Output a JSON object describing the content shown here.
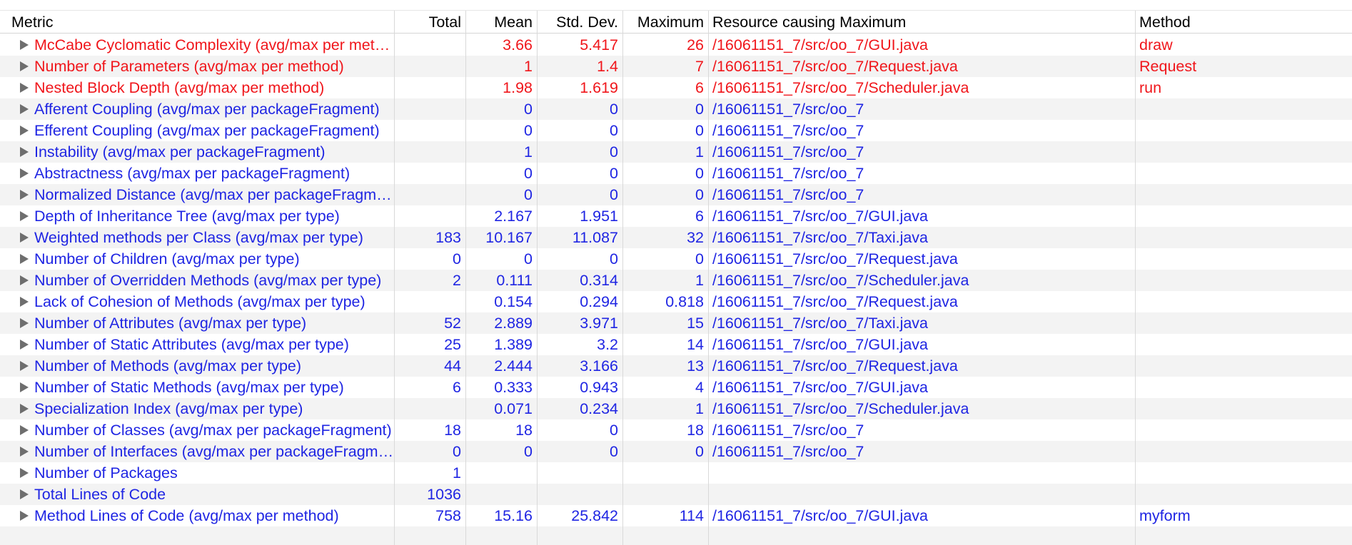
{
  "columns": {
    "metric": "Metric",
    "total": "Total",
    "mean": "Mean",
    "std_dev": "Std. Dev.",
    "maximum": "Maximum",
    "resource": "Resource causing Maximum",
    "method": "Method"
  },
  "colors": {
    "warning_text": "#f0161b",
    "normal_text": "#1f25e3",
    "stripe": "#f3f3f3",
    "expander": "#6e6e6e"
  },
  "rows": [
    {
      "metric": "McCabe Cyclomatic Complexity (avg/max per method)",
      "total": "",
      "mean": "3.66",
      "std_dev": "5.417",
      "maximum": "26",
      "resource": "/16061151_7/src/oo_7/GUI.java",
      "method": "draw",
      "status": "warning"
    },
    {
      "metric": "Number of Parameters (avg/max per method)",
      "total": "",
      "mean": "1",
      "std_dev": "1.4",
      "maximum": "7",
      "resource": "/16061151_7/src/oo_7/Request.java",
      "method": "Request",
      "status": "warning"
    },
    {
      "metric": "Nested Block Depth (avg/max per method)",
      "total": "",
      "mean": "1.98",
      "std_dev": "1.619",
      "maximum": "6",
      "resource": "/16061151_7/src/oo_7/Scheduler.java",
      "method": "run",
      "status": "warning"
    },
    {
      "metric": "Afferent Coupling (avg/max per packageFragment)",
      "total": "",
      "mean": "0",
      "std_dev": "0",
      "maximum": "0",
      "resource": "/16061151_7/src/oo_7",
      "method": "",
      "status": "normal"
    },
    {
      "metric": "Efferent Coupling (avg/max per packageFragment)",
      "total": "",
      "mean": "0",
      "std_dev": "0",
      "maximum": "0",
      "resource": "/16061151_7/src/oo_7",
      "method": "",
      "status": "normal"
    },
    {
      "metric": "Instability (avg/max per packageFragment)",
      "total": "",
      "mean": "1",
      "std_dev": "0",
      "maximum": "1",
      "resource": "/16061151_7/src/oo_7",
      "method": "",
      "status": "normal"
    },
    {
      "metric": "Abstractness (avg/max per packageFragment)",
      "total": "",
      "mean": "0",
      "std_dev": "0",
      "maximum": "0",
      "resource": "/16061151_7/src/oo_7",
      "method": "",
      "status": "normal"
    },
    {
      "metric": "Normalized Distance (avg/max per packageFragment)",
      "total": "",
      "mean": "0",
      "std_dev": "0",
      "maximum": "0",
      "resource": "/16061151_7/src/oo_7",
      "method": "",
      "status": "normal"
    },
    {
      "metric": "Depth of Inheritance Tree (avg/max per type)",
      "total": "",
      "mean": "2.167",
      "std_dev": "1.951",
      "maximum": "6",
      "resource": "/16061151_7/src/oo_7/GUI.java",
      "method": "",
      "status": "normal"
    },
    {
      "metric": "Weighted methods per Class (avg/max per type)",
      "total": "183",
      "mean": "10.167",
      "std_dev": "11.087",
      "maximum": "32",
      "resource": "/16061151_7/src/oo_7/Taxi.java",
      "method": "",
      "status": "normal"
    },
    {
      "metric": "Number of Children (avg/max per type)",
      "total": "0",
      "mean": "0",
      "std_dev": "0",
      "maximum": "0",
      "resource": "/16061151_7/src/oo_7/Request.java",
      "method": "",
      "status": "normal"
    },
    {
      "metric": "Number of Overridden Methods (avg/max per type)",
      "total": "2",
      "mean": "0.111",
      "std_dev": "0.314",
      "maximum": "1",
      "resource": "/16061151_7/src/oo_7/Scheduler.java",
      "method": "",
      "status": "normal"
    },
    {
      "metric": "Lack of Cohesion of Methods (avg/max per type)",
      "total": "",
      "mean": "0.154",
      "std_dev": "0.294",
      "maximum": "0.818",
      "resource": "/16061151_7/src/oo_7/Request.java",
      "method": "",
      "status": "normal"
    },
    {
      "metric": "Number of Attributes (avg/max per type)",
      "total": "52",
      "mean": "2.889",
      "std_dev": "3.971",
      "maximum": "15",
      "resource": "/16061151_7/src/oo_7/Taxi.java",
      "method": "",
      "status": "normal"
    },
    {
      "metric": "Number of Static Attributes (avg/max per type)",
      "total": "25",
      "mean": "1.389",
      "std_dev": "3.2",
      "maximum": "14",
      "resource": "/16061151_7/src/oo_7/GUI.java",
      "method": "",
      "status": "normal"
    },
    {
      "metric": "Number of Methods (avg/max per type)",
      "total": "44",
      "mean": "2.444",
      "std_dev": "3.166",
      "maximum": "13",
      "resource": "/16061151_7/src/oo_7/Request.java",
      "method": "",
      "status": "normal"
    },
    {
      "metric": "Number of Static Methods (avg/max per type)",
      "total": "6",
      "mean": "0.333",
      "std_dev": "0.943",
      "maximum": "4",
      "resource": "/16061151_7/src/oo_7/GUI.java",
      "method": "",
      "status": "normal"
    },
    {
      "metric": "Specialization Index (avg/max per type)",
      "total": "",
      "mean": "0.071",
      "std_dev": "0.234",
      "maximum": "1",
      "resource": "/16061151_7/src/oo_7/Scheduler.java",
      "method": "",
      "status": "normal"
    },
    {
      "metric": "Number of Classes (avg/max per packageFragment)",
      "total": "18",
      "mean": "18",
      "std_dev": "0",
      "maximum": "18",
      "resource": "/16061151_7/src/oo_7",
      "method": "",
      "status": "normal"
    },
    {
      "metric": "Number of Interfaces (avg/max per packageFragment)",
      "total": "0",
      "mean": "0",
      "std_dev": "0",
      "maximum": "0",
      "resource": "/16061151_7/src/oo_7",
      "method": "",
      "status": "normal"
    },
    {
      "metric": "Number of Packages",
      "total": "1",
      "mean": "",
      "std_dev": "",
      "maximum": "",
      "resource": "",
      "method": "",
      "status": "normal"
    },
    {
      "metric": "Total Lines of Code",
      "total": "1036",
      "mean": "",
      "std_dev": "",
      "maximum": "",
      "resource": "",
      "method": "",
      "status": "normal"
    },
    {
      "metric": "Method Lines of Code (avg/max per method)",
      "total": "758",
      "mean": "15.16",
      "std_dev": "25.842",
      "maximum": "114",
      "resource": "/16061151_7/src/oo_7/GUI.java",
      "method": "myform",
      "status": "normal"
    }
  ]
}
